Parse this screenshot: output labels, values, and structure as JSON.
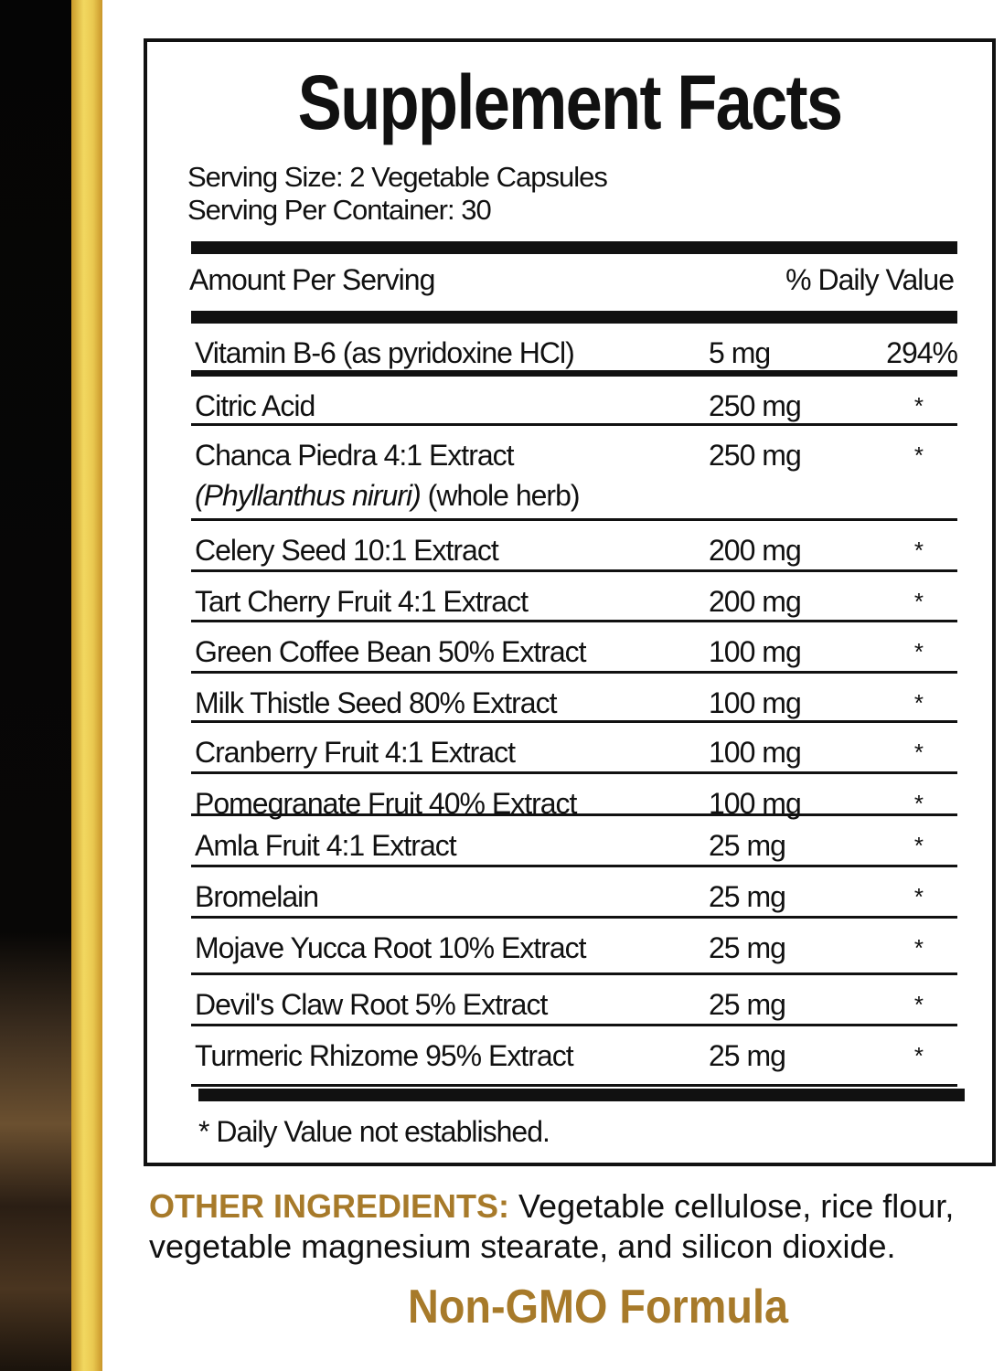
{
  "title": "Supplement Facts",
  "serving_size": "Serving Size: 2 Vegetable Capsules",
  "servings_per_container": "Serving Per Container: 30",
  "header": {
    "amount": "Amount Per Serving",
    "daily_value": "% Daily Value"
  },
  "rows": [
    {
      "name": "Vitamin B-6 (as pyridoxine HCl)",
      "amount": "5 mg",
      "dv": "294%"
    },
    {
      "name": "Citric Acid",
      "amount": "250 mg",
      "dv": "*"
    },
    {
      "name": "Chanca Piedra 4:1 Extract",
      "latin": "(Phyllanthus niruri)",
      "note": " (whole herb)",
      "amount": "250 mg",
      "dv": "*"
    },
    {
      "name": "Celery Seed 10:1 Extract",
      "amount": "200 mg",
      "dv": "*"
    },
    {
      "name": "Tart Cherry Fruit 4:1 Extract",
      "amount": "200 mg",
      "dv": "*"
    },
    {
      "name": "Green Coffee Bean 50% Extract",
      "amount": "100 mg",
      "dv": "*"
    },
    {
      "name": "Milk Thistle Seed 80% Extract",
      "amount": "100 mg",
      "dv": "*"
    },
    {
      "name": "Cranberry Fruit 4:1 Extract",
      "amount": "100 mg",
      "dv": "*"
    },
    {
      "name": "Pomegranate Fruit 40% Extract",
      "amount": "100 mg",
      "dv": "*"
    },
    {
      "name": "Amla Fruit 4:1 Extract",
      "amount": "25 mg",
      "dv": "*"
    },
    {
      "name": "Bromelain",
      "amount": "25 mg",
      "dv": "*"
    },
    {
      "name": "Mojave Yucca Root 10% Extract",
      "amount": "25 mg",
      "dv": "*"
    },
    {
      "name": "Devil's Claw Root 5% Extract",
      "amount": "25 mg",
      "dv": "*"
    },
    {
      "name": "Turmeric Rhizome 95% Extract",
      "amount": "25 mg",
      "dv": "*"
    }
  ],
  "footnote": "* Daily Value not established.",
  "other_ingredients": {
    "label": "OTHER INGREDIENTS:",
    "text": " Vegetable cellulose, rice flour, vegetable magnesium stearate, and silicon dioxide."
  },
  "non_gmo": "Non-GMO Formula",
  "colors": {
    "accent": "#a77a2a",
    "gold": "#e9c850",
    "text": "#111111"
  }
}
